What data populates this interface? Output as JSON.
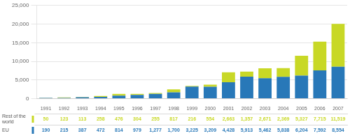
{
  "chart_data": {
    "type": "bar",
    "stacked": true,
    "grid": true,
    "data_labels": true,
    "categories": [
      "1991",
      "1992",
      "1993",
      "1994",
      "1995",
      "1996",
      "1997",
      "1998",
      "1999",
      "2000",
      "2001",
      "2002",
      "2003",
      "2004",
      "2005",
      "2006",
      "2007"
    ],
    "series": [
      {
        "name": "EU",
        "color": "#2878b8",
        "values": [
          190,
          215,
          387,
          472,
          814,
          979,
          1277,
          1700,
          3225,
          3209,
          4428,
          5913,
          5462,
          5838,
          6204,
          7592,
          8554
        ],
        "value_labels": [
          "190",
          "215",
          "387",
          "472",
          "814",
          "979",
          "1,277",
          "1,700",
          "3,225",
          "3,209",
          "4,428",
          "5,913",
          "5,462",
          "5,838",
          "6,204",
          "7,592",
          "8,554"
        ]
      },
      {
        "name": "Rest of the\nworld",
        "color": "#c8d826",
        "values": [
          50,
          123,
          113,
          258,
          476,
          304,
          255,
          817,
          216,
          554,
          2663,
          1357,
          2671,
          2369,
          5327,
          7715,
          11519
        ],
        "value_labels": [
          "50",
          "123",
          "113",
          "258",
          "476",
          "304",
          "255",
          "817",
          "216",
          "554",
          "2,663",
          "1,357",
          "2,671",
          "2,369",
          "5,327",
          "7,715",
          "11,519"
        ]
      }
    ],
    "ylim": [
      0,
      25000
    ],
    "yticks": [
      0,
      {
        "value": 5000,
        "label": "5,000"
      },
      {
        "value": 10000,
        "label": "10,000"
      },
      {
        "value": 15000,
        "label": "15,000"
      },
      {
        "value": 20000,
        "label": "20,000"
      },
      {
        "value": 25000,
        "label": "25,000"
      }
    ]
  }
}
